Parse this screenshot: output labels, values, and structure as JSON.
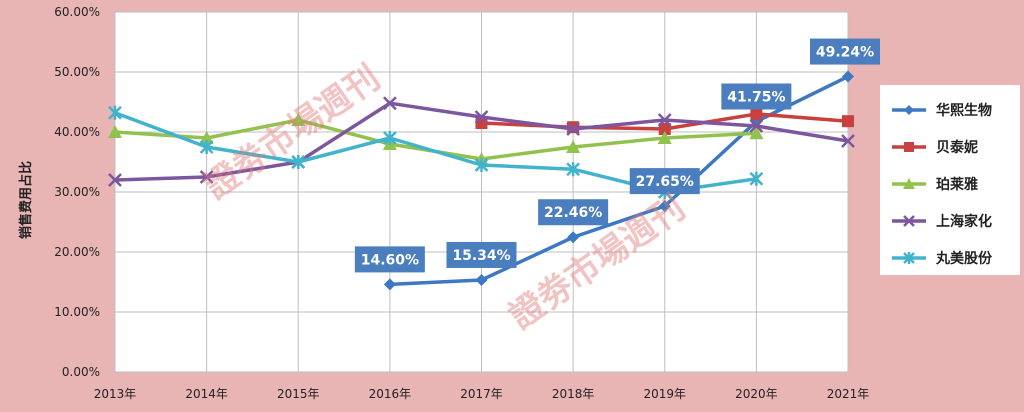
{
  "chart_data": {
    "type": "line",
    "ylabel": "销售费用占比",
    "categories": [
      "2013年",
      "2014年",
      "2015年",
      "2016年",
      "2017年",
      "2018年",
      "2019年",
      "2020年",
      "2021年"
    ],
    "ylim": [
      0,
      60
    ],
    "yticks": [
      "0.00%",
      "10.00%",
      "20.00%",
      "30.00%",
      "40.00%",
      "50.00%",
      "60.00%"
    ],
    "grid": true,
    "legend_position": "right",
    "series": [
      {
        "name": "华熙生物",
        "color": "#3c78c3",
        "marker": "diamond",
        "values": [
          null,
          null,
          null,
          14.6,
          15.34,
          22.46,
          27.65,
          41.75,
          49.24
        ]
      },
      {
        "name": "贝泰妮",
        "color": "#c8413e",
        "marker": "square",
        "values": [
          null,
          null,
          null,
          null,
          41.5,
          40.8,
          40.5,
          43.0,
          41.8
        ]
      },
      {
        "name": "珀莱雅",
        "color": "#92c24e",
        "marker": "triangle",
        "values": [
          40.0,
          39.0,
          42.0,
          38.0,
          35.5,
          37.5,
          39.0,
          39.8,
          null
        ]
      },
      {
        "name": "上海家化",
        "color": "#7d56a0",
        "marker": "x",
        "values": [
          32.0,
          32.5,
          35.0,
          44.8,
          42.5,
          40.5,
          42.0,
          41.0,
          38.5
        ]
      },
      {
        "name": "丸美股份",
        "color": "#42b3cc",
        "marker": "asterisk",
        "values": [
          43.2,
          37.5,
          35.0,
          39.0,
          34.5,
          33.8,
          30.0,
          32.2,
          null
        ]
      }
    ],
    "data_labels": [
      {
        "series": 0,
        "index": 3,
        "text": "14.60%"
      },
      {
        "series": 0,
        "index": 4,
        "text": "15.34%"
      },
      {
        "series": 0,
        "index": 5,
        "text": "22.46%"
      },
      {
        "series": 0,
        "index": 6,
        "text": "27.65%"
      },
      {
        "series": 0,
        "index": 7,
        "text": "41.75%"
      },
      {
        "series": 0,
        "index": 8,
        "text": "49.24%"
      }
    ],
    "watermark": "證劵市場週刊"
  }
}
